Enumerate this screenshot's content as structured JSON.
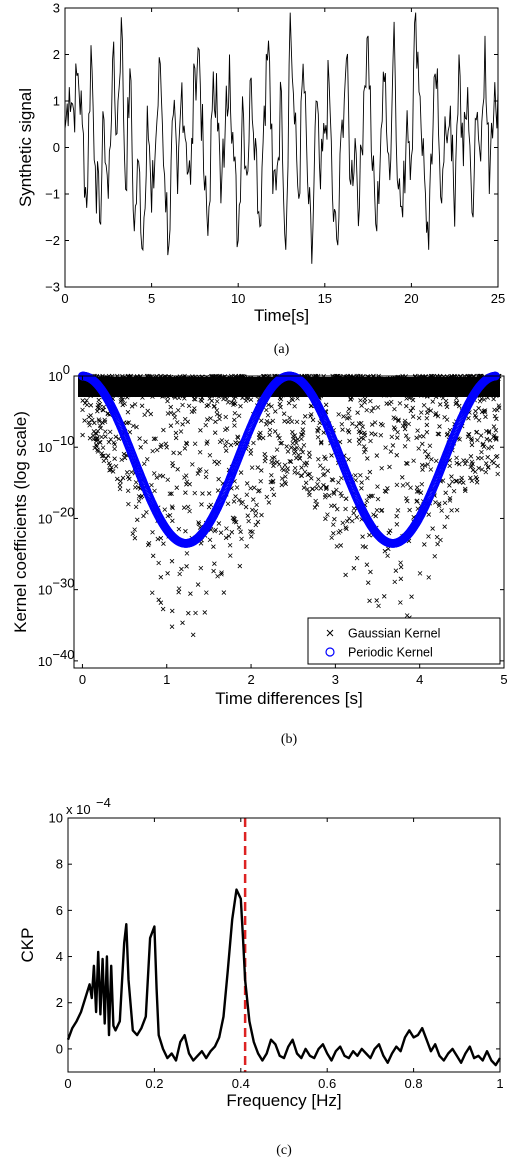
{
  "chart_data": [
    {
      "id": "a",
      "type": "line",
      "caption": "(a)",
      "xlabel": "Time[s]",
      "ylabel": "Synthetic signal",
      "xlim": [
        0,
        25
      ],
      "ylim": [
        -3,
        3
      ],
      "xticks": [
        "0",
        "5",
        "10",
        "15",
        "20",
        "25"
      ],
      "yticks": [
        "−3",
        "−2",
        "−1",
        "0",
        "1",
        "2",
        "3"
      ],
      "series": [
        {
          "color": "#000000",
          "x": [
            0.0,
            0.25,
            0.5,
            0.75,
            1.0,
            1.25,
            1.5,
            1.75,
            2.0,
            2.25,
            2.5,
            2.75,
            3.0,
            3.25,
            3.5,
            3.75,
            4.0,
            4.25,
            4.5,
            4.75,
            5.0,
            5.25,
            5.5,
            5.75,
            6.0,
            6.25,
            6.5,
            6.75,
            7.0,
            7.25,
            7.5,
            7.75,
            8.0,
            8.25,
            8.5,
            8.75,
            9.0,
            9.25,
            9.5,
            9.75,
            10.0,
            10.25,
            10.5,
            10.75,
            11.0,
            11.25,
            11.5,
            11.75,
            12.0,
            12.25,
            12.5,
            12.75,
            13.0,
            13.25,
            13.5,
            13.75,
            14.0,
            14.25,
            14.5,
            14.75,
            15.0,
            15.25,
            15.5,
            15.75,
            16.0,
            16.25,
            16.5,
            16.75,
            17.0,
            17.25,
            17.5,
            17.75,
            18.0,
            18.25,
            18.5,
            18.75,
            19.0,
            19.25,
            19.5,
            19.75,
            20.0,
            20.25,
            20.5,
            20.75,
            21.0,
            21.25,
            21.5,
            21.75,
            22.0,
            22.25,
            22.5,
            22.75,
            23.0,
            23.25,
            23.5,
            23.75,
            24.0,
            24.25,
            24.5,
            24.75,
            25.0
          ],
          "values": [
            0.4,
            1.3,
            0.8,
            1.6,
            0.5,
            -1.3,
            2.2,
            -0.4,
            -1.6,
            0.6,
            -1.1,
            1.9,
            0.3,
            2.8,
            -0.9,
            1.7,
            -1.8,
            -0.3,
            -2.2,
            0.9,
            -1.4,
            0.2,
            1.8,
            -0.6,
            -2.1,
            0.7,
            -1.0,
            1.4,
            0.1,
            -0.8,
            1.7,
            2.1,
            -0.5,
            -1.9,
            0.8,
            1.6,
            -1.2,
            0.4,
            2.0,
            -0.3,
            -2.0,
            1.1,
            -0.6,
            1.5,
            0.2,
            -1.7,
            0.9,
            2.3,
            -1.0,
            -0.4,
            1.2,
            -2.2,
            2.9,
            0.5,
            -1.1,
            1.8,
            -0.7,
            -2.5,
            1.0,
            -0.9,
            0.3,
            1.4,
            -1.6,
            -2.1,
            0.6,
            1.9,
            -0.8,
            0.2,
            -1.3,
            1.2,
            2.4,
            -0.5,
            -1.8,
            0.4,
            1.6,
            -0.7,
            2.7,
            -0.9,
            -1.5,
            0.8,
            -0.2,
            2.9,
            1.1,
            -0.6,
            -2.2,
            0.5,
            1.7,
            -1.2,
            0.3,
            0.9,
            -1.7,
            2.0,
            -0.4,
            1.3,
            -1.4,
            0.6,
            -0.3,
            2.4,
            -1.0,
            0.7,
            1.2
          ]
        }
      ]
    },
    {
      "id": "b",
      "type": "scatter",
      "caption": "(b)",
      "xlabel": "Time differences [s]",
      "ylabel": "Kernel coefficients (log scale)",
      "yscale": "log",
      "xlim": [
        -0.1,
        5.0
      ],
      "ylim_log10": [
        -41,
        0
      ],
      "xticks": [
        "0",
        "1",
        "2",
        "3",
        "4",
        "5"
      ],
      "yticks": [
        {
          "base": "10",
          "exp": "0"
        },
        {
          "base": "10",
          "exp": "−10"
        },
        {
          "base": "10",
          "exp": "−20"
        },
        {
          "base": "10",
          "exp": "−30"
        },
        {
          "base": "10",
          "exp": "−40"
        }
      ],
      "legend_position": "bottom-right",
      "series": [
        {
          "name": "Gaussian Kernel",
          "marker": "x",
          "color": "#000000",
          "x": [
            0.2,
            0.4,
            0.5,
            0.6,
            0.7,
            0.8,
            0.9,
            1.0,
            1.2,
            1.4,
            1.6,
            1.8,
            2.0,
            2.2,
            2.5,
            2.8,
            3.0,
            3.2,
            3.4,
            3.6,
            3.8,
            4.0,
            4.2,
            4.4,
            4.6
          ],
          "values_log10": [
            -11,
            -16,
            -20,
            -24,
            -27,
            -30,
            -32,
            -36,
            -38,
            -37,
            -33,
            -29,
            -23,
            -18,
            -14,
            -20,
            -26,
            -30,
            -35,
            -39,
            -36,
            -31,
            -27,
            -21,
            -15
          ]
        },
        {
          "name": "Periodic Kernel",
          "marker": "o",
          "color": "#0000ff",
          "x": [
            0.0,
            0.25,
            0.5,
            0.75,
            1.0,
            1.227,
            1.5,
            1.75,
            2.0,
            2.25,
            2.454,
            2.75,
            3.0,
            3.25,
            3.5,
            3.68,
            3.9,
            4.1,
            4.3,
            4.5,
            4.7,
            4.9
          ],
          "values_log10": [
            0,
            -2.1,
            -7.9,
            -15.0,
            -21.1,
            -23.5,
            -20.3,
            -13.1,
            -6.5,
            -1.5,
            0,
            -2.9,
            -9.2,
            -16.7,
            -21.8,
            -23.5,
            -21.9,
            -17.2,
            -11.1,
            -5.4,
            -1.4,
            0
          ]
        }
      ]
    },
    {
      "id": "c",
      "type": "line",
      "caption": "(c)",
      "xlabel": "Frequency [Hz]",
      "ylabel": "CKP",
      "y_multiplier_label": {
        "text": "x 10",
        "exp": "−4"
      },
      "xlim": [
        0,
        1
      ],
      "ylim": [
        -1,
        10
      ],
      "xticks": [
        "0",
        "0.2",
        "0.4",
        "0.6",
        "0.8",
        "1"
      ],
      "yticks": [
        "0",
        "2",
        "4",
        "6",
        "8",
        "10"
      ],
      "vline": {
        "x": 0.41,
        "color": "#dd2222",
        "style": "dashed"
      },
      "series": [
        {
          "color": "#000000",
          "x": [
            0.0,
            0.01,
            0.02,
            0.03,
            0.04,
            0.05,
            0.055,
            0.06,
            0.065,
            0.07,
            0.075,
            0.08,
            0.085,
            0.09,
            0.095,
            0.1,
            0.105,
            0.11,
            0.12,
            0.13,
            0.135,
            0.14,
            0.15,
            0.16,
            0.17,
            0.18,
            0.19,
            0.2,
            0.205,
            0.21,
            0.22,
            0.23,
            0.24,
            0.25,
            0.26,
            0.27,
            0.28,
            0.29,
            0.3,
            0.31,
            0.32,
            0.33,
            0.34,
            0.35,
            0.36,
            0.37,
            0.38,
            0.39,
            0.4,
            0.405,
            0.41,
            0.42,
            0.43,
            0.44,
            0.45,
            0.46,
            0.47,
            0.48,
            0.49,
            0.5,
            0.51,
            0.52,
            0.53,
            0.54,
            0.55,
            0.56,
            0.57,
            0.58,
            0.59,
            0.6,
            0.61,
            0.62,
            0.63,
            0.64,
            0.65,
            0.66,
            0.67,
            0.68,
            0.69,
            0.7,
            0.71,
            0.72,
            0.73,
            0.74,
            0.75,
            0.76,
            0.77,
            0.78,
            0.79,
            0.8,
            0.81,
            0.82,
            0.83,
            0.84,
            0.85,
            0.86,
            0.87,
            0.88,
            0.89,
            0.9,
            0.91,
            0.92,
            0.93,
            0.94,
            0.95,
            0.96,
            0.97,
            0.98,
            0.99,
            1.0
          ],
          "values": [
            0.4,
            0.9,
            1.2,
            1.6,
            2.2,
            2.8,
            2.2,
            3.6,
            1.6,
            4.2,
            1.5,
            3.9,
            1.1,
            4.0,
            0.6,
            3.6,
            1.0,
            0.8,
            1.2,
            4.6,
            5.4,
            3.0,
            0.8,
            0.6,
            0.9,
            1.4,
            4.8,
            5.3,
            2.6,
            0.6,
            0.0,
            -0.4,
            -0.2,
            -0.5,
            0.3,
            0.6,
            -0.2,
            -0.5,
            -0.3,
            -0.1,
            -0.4,
            -0.1,
            0.1,
            0.5,
            1.4,
            3.4,
            5.6,
            6.9,
            6.5,
            4.8,
            3.0,
            1.2,
            0.3,
            -0.2,
            -0.5,
            -0.2,
            0.4,
            0.2,
            -0.3,
            -0.4,
            0.1,
            0.4,
            -0.2,
            -0.4,
            0.0,
            -0.3,
            -0.4,
            0.0,
            0.2,
            -0.2,
            -0.5,
            -0.1,
            0.1,
            -0.3,
            -0.4,
            -0.1,
            -0.3,
            0.0,
            -0.2,
            -0.4,
            0.0,
            0.2,
            -0.3,
            -0.6,
            -0.2,
            0.1,
            -0.1,
            0.5,
            0.8,
            0.5,
            0.6,
            0.9,
            0.4,
            -0.1,
            0.2,
            -0.3,
            -0.5,
            -0.2,
            0.0,
            -0.3,
            -0.6,
            -0.2,
            0.1,
            -0.4,
            -0.3,
            -0.5,
            -0.1,
            -0.5,
            -0.7,
            -0.4
          ]
        }
      ]
    }
  ]
}
